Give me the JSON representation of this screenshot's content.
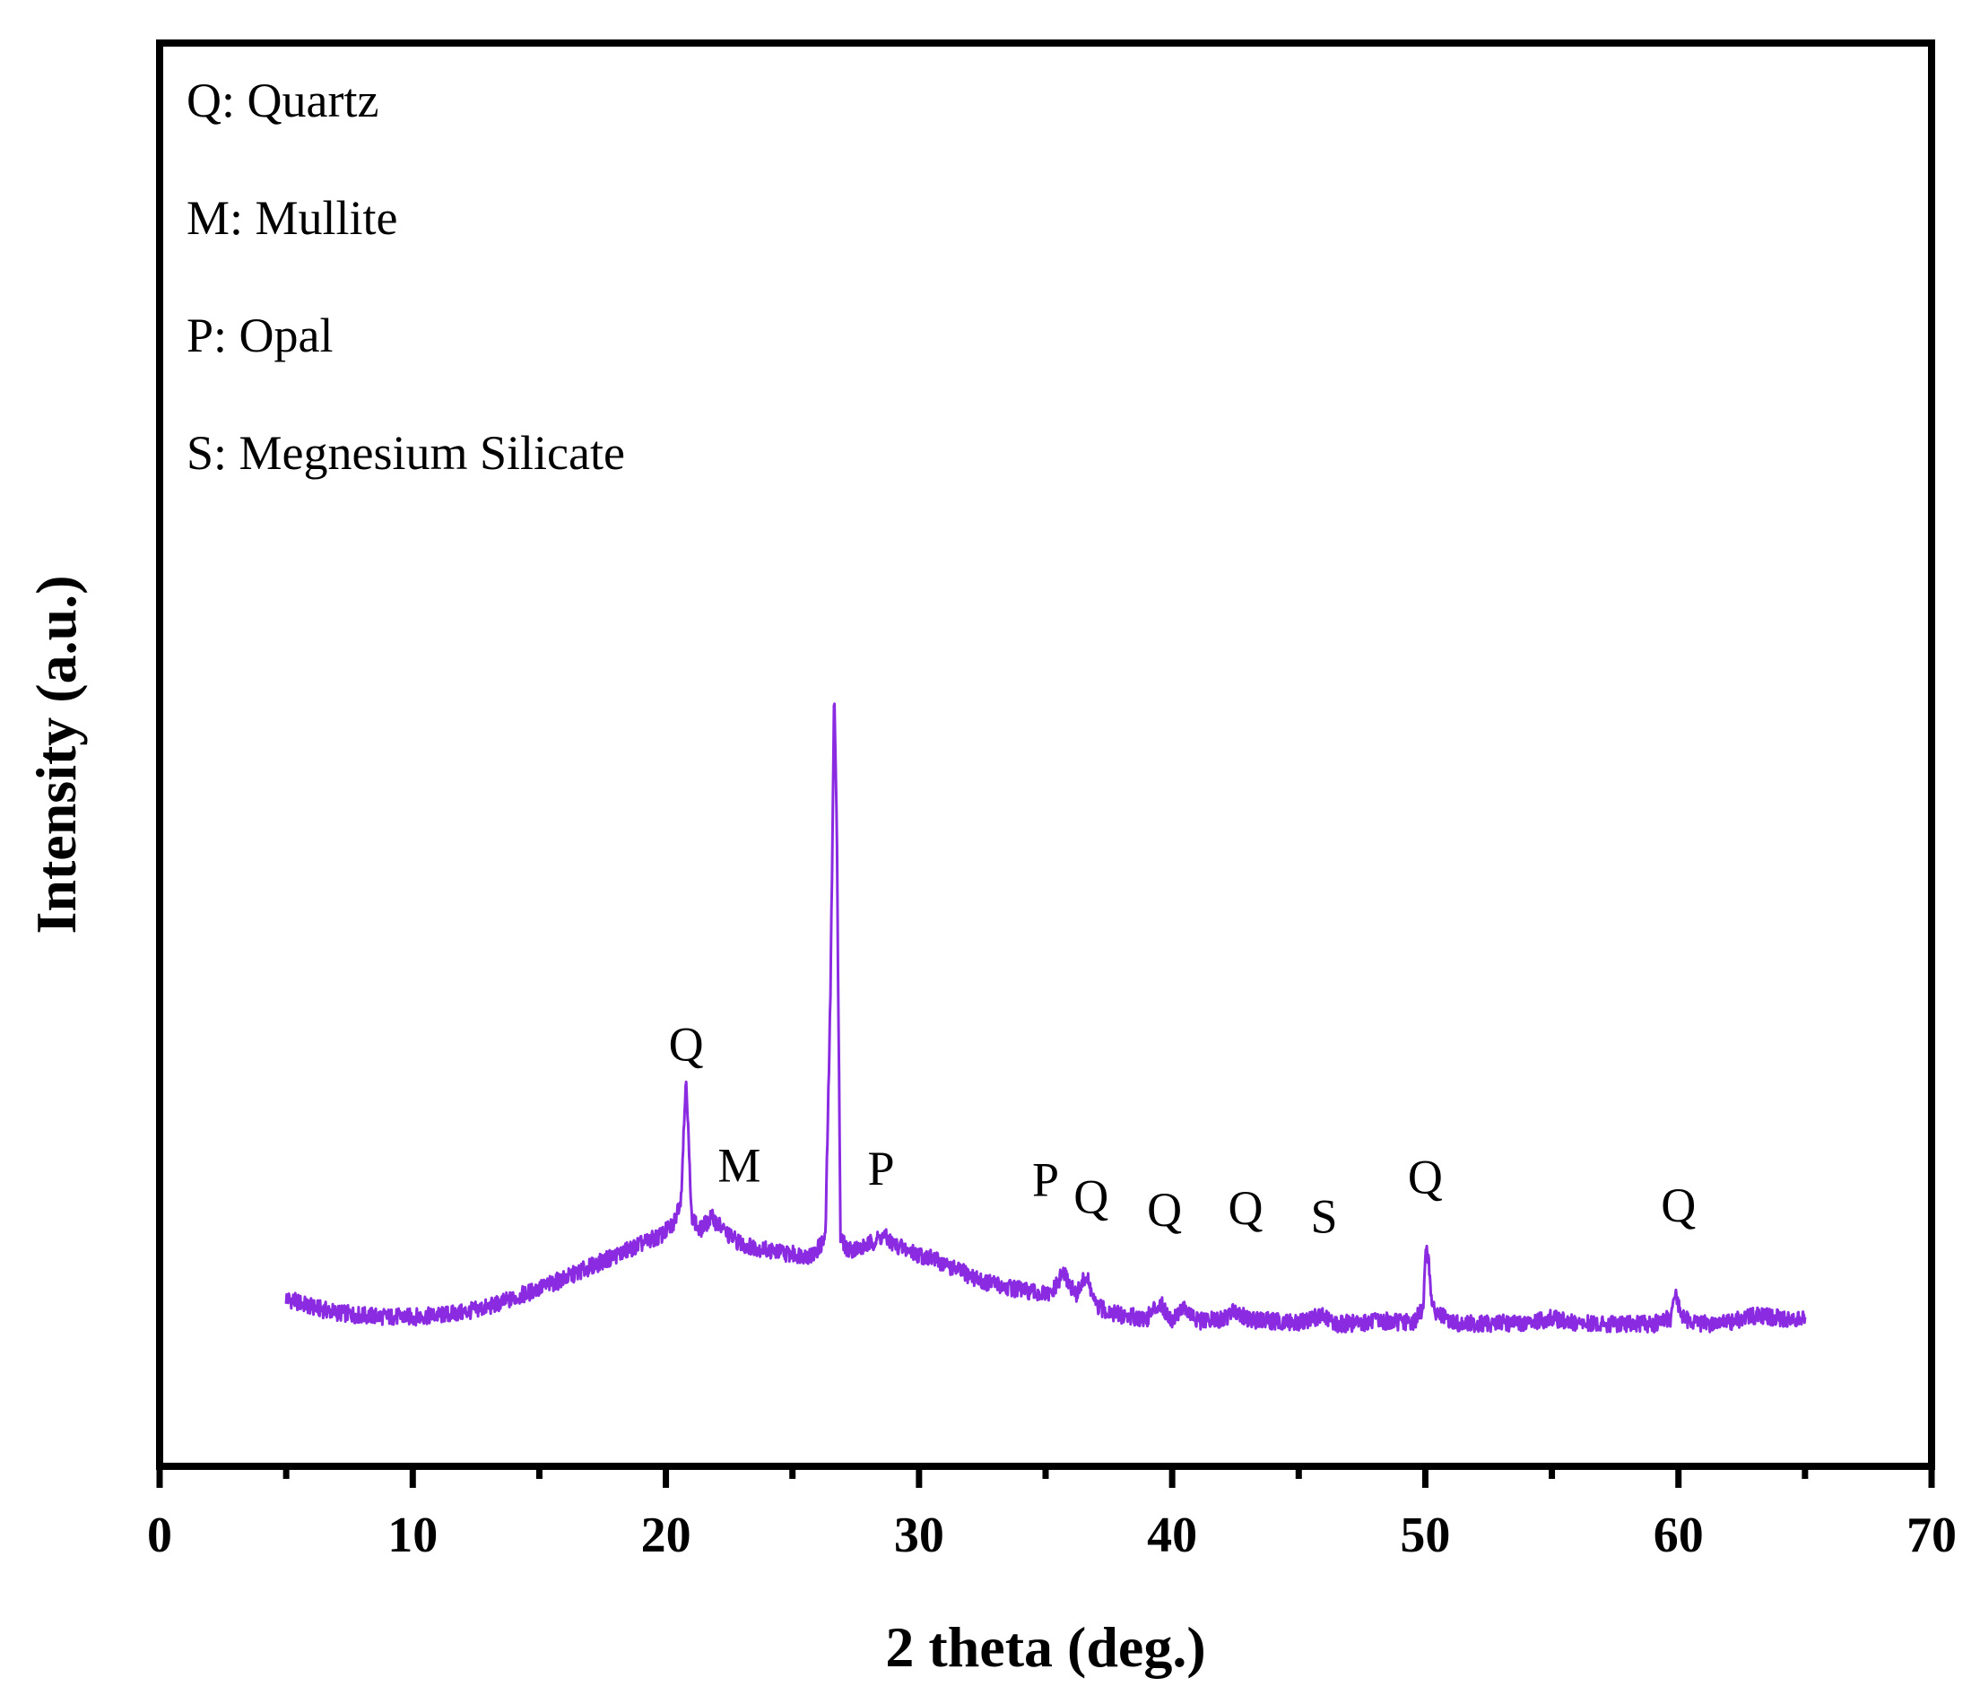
{
  "chart_data": {
    "type": "line",
    "xlabel": "2 theta (deg.)",
    "ylabel": "Intensity (a.u.)",
    "xlim": [
      0,
      70
    ],
    "ylim": [
      0,
      100
    ],
    "y_ticks_shown": false,
    "grid": false,
    "x_ticks": [
      0,
      10,
      20,
      30,
      40,
      50,
      60,
      70
    ],
    "x_minor_ticks": [
      5,
      15,
      25,
      35,
      45,
      55,
      65
    ],
    "colors": {
      "series": "#8a2be2",
      "axes": "#000000"
    },
    "legend_entries": [
      "Q: Quartz",
      "M: Mullite",
      "P: Opal",
      "S: Megnesium Silicate"
    ],
    "peak_labels": [
      {
        "x": 20.8,
        "y": 28.5,
        "text": "Q"
      },
      {
        "x": 22.9,
        "y": 20.0,
        "text": "M"
      },
      {
        "x": 28.5,
        "y": 19.8,
        "text": "P"
      },
      {
        "x": 35.0,
        "y": 19.0,
        "text": "P"
      },
      {
        "x": 36.8,
        "y": 17.8,
        "text": "Q"
      },
      {
        "x": 39.7,
        "y": 16.9,
        "text": "Q"
      },
      {
        "x": 42.9,
        "y": 17.0,
        "text": "Q"
      },
      {
        "x": 46.0,
        "y": 16.4,
        "text": "S"
      },
      {
        "x": 50.0,
        "y": 19.2,
        "text": "Q"
      },
      {
        "x": 60.0,
        "y": 17.2,
        "text": "Q"
      }
    ],
    "series": [
      {
        "name": "",
        "x": [
          5,
          6,
          7,
          8,
          9,
          10,
          11,
          12,
          13,
          14,
          15,
          16,
          17,
          18,
          19,
          19.8,
          20.3,
          20.6,
          20.8,
          21.0,
          21.3,
          21.8,
          22.5,
          23.0,
          24.0,
          25.0,
          25.8,
          26.3,
          26.5,
          26.65,
          26.75,
          26.9,
          27.2,
          27.8,
          28.6,
          29.0,
          29.8,
          30.5,
          31.5,
          32.5,
          33.5,
          34.5,
          35.2,
          35.7,
          36.2,
          36.6,
          37.0,
          38.0,
          39.0,
          39.5,
          40.0,
          40.4,
          41.0,
          42.0,
          42.5,
          43.0,
          44.0,
          45.0,
          45.9,
          46.5,
          47.5,
          48.5,
          49.5,
          49.9,
          50.05,
          50.3,
          51.0,
          52.0,
          53.0,
          54.0,
          55.0,
          56.0,
          57.0,
          58.0,
          59.0,
          59.7,
          59.9,
          60.2,
          61.0,
          62.0,
          63.0,
          64.0,
          65.0
        ],
        "y": [
          11.8,
          11.2,
          10.8,
          10.6,
          10.5,
          10.5,
          10.6,
          10.8,
          11.2,
          11.8,
          12.5,
          13.2,
          14.0,
          14.8,
          15.6,
          16.2,
          17.0,
          19.0,
          27.6,
          17.8,
          16.5,
          17.5,
          16.2,
          15.6,
          15.2,
          14.9,
          14.8,
          16.0,
          33.0,
          54.5,
          45.0,
          16.0,
          15.2,
          15.4,
          16.2,
          15.6,
          15.0,
          14.6,
          13.8,
          13.0,
          12.6,
          12.2,
          12.0,
          13.6,
          12.0,
          13.4,
          11.2,
          10.6,
          10.4,
          11.5,
          10.3,
          11.2,
          10.2,
          10.3,
          11.0,
          10.3,
          10.2,
          10.1,
          10.6,
          10.0,
          10.1,
          10.2,
          10.1,
          11.0,
          15.8,
          11.0,
          10.1,
          10.0,
          10.1,
          10.0,
          10.4,
          10.0,
          10.0,
          10.0,
          10.0,
          10.4,
          12.0,
          10.4,
          10.0,
          10.1,
          10.6,
          10.4,
          10.3
        ]
      }
    ]
  }
}
